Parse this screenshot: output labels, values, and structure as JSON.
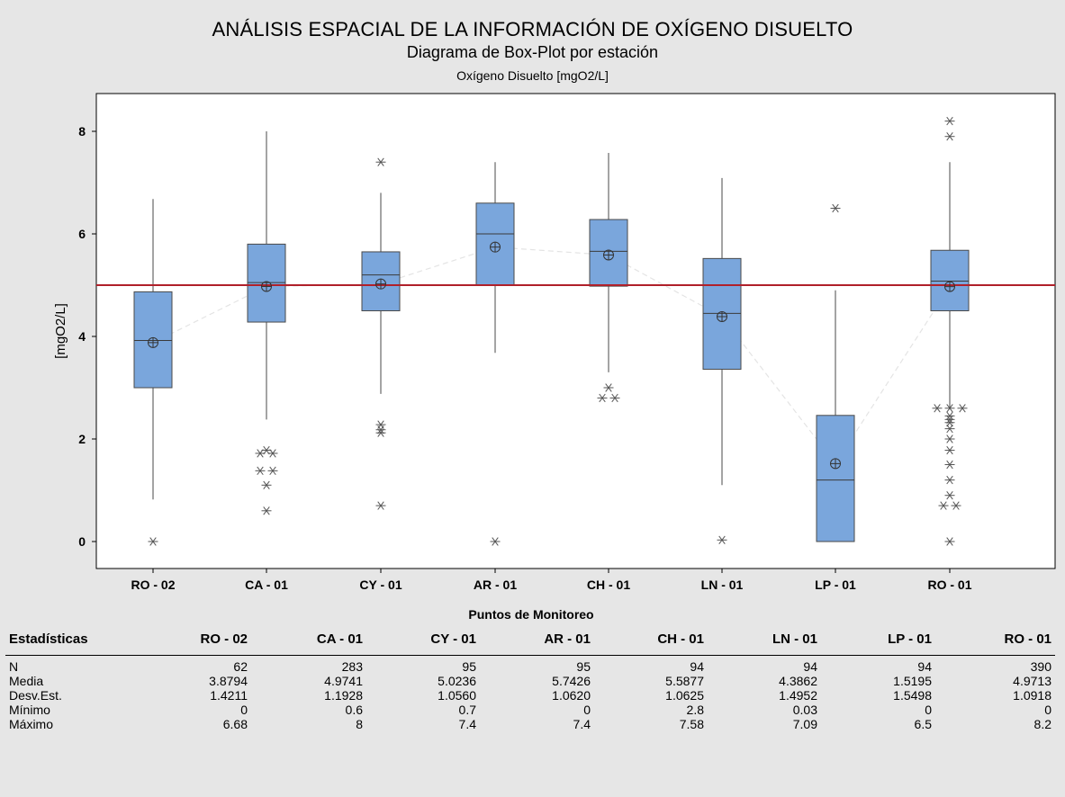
{
  "title": "ANÁLISIS ESPACIAL DE LA INFORMACIÓN DE OXÍGENO DISUELTO",
  "subtitle": "Diagrama de Box-Plot por estación",
  "chart_data": {
    "type": "boxplot",
    "title": "Oxígeno Disuelto [mgO2/L]",
    "xlabel": "Puntos de Monitoreo",
    "ylabel": "[mgO2/L]",
    "ylim": [
      -0.45,
      8.65
    ],
    "yticks": [
      0,
      2,
      4,
      6,
      8
    ],
    "reference_line": 5,
    "categories": [
      "RO - 02",
      "CA - 01",
      "CY - 01",
      "AR - 01",
      "CH - 01",
      "LN - 01",
      "LP - 01",
      "RO - 01"
    ],
    "boxes": [
      {
        "q1": 3.0,
        "median": 3.92,
        "q3": 4.87,
        "whisker_low": 0.82,
        "whisker_high": 6.68,
        "mean": 3.8794,
        "outliers": [
          0
        ]
      },
      {
        "q1": 4.28,
        "median": 5.05,
        "q3": 5.8,
        "whisker_low": 2.38,
        "whisker_high": 8.0,
        "mean": 4.9741,
        "outliers": [
          1.72,
          1.72,
          1.78,
          1.38,
          1.38,
          1.1,
          0.6
        ]
      },
      {
        "q1": 4.5,
        "median": 5.2,
        "q3": 5.65,
        "whisker_low": 2.88,
        "whisker_high": 6.8,
        "mean": 5.0236,
        "outliers": [
          7.4,
          2.28,
          2.18,
          2.12,
          0.7
        ]
      },
      {
        "q1": 5.0,
        "median": 6.0,
        "q3": 6.6,
        "whisker_low": 3.68,
        "whisker_high": 7.4,
        "mean": 5.7426,
        "outliers": [
          0
        ]
      },
      {
        "q1": 4.98,
        "median": 5.66,
        "q3": 6.28,
        "whisker_low": 3.3,
        "whisker_high": 7.58,
        "mean": 5.5877,
        "outliers": [
          3.0,
          2.8,
          2.8
        ]
      },
      {
        "q1": 3.36,
        "median": 4.45,
        "q3": 5.52,
        "whisker_low": 1.1,
        "whisker_high": 7.09,
        "mean": 4.3862,
        "outliers": [
          0.03
        ]
      },
      {
        "q1": 0.0,
        "median": 1.2,
        "q3": 2.46,
        "whisker_low": 0.0,
        "whisker_high": 4.9,
        "mean": 1.5195,
        "outliers": [
          6.5
        ]
      },
      {
        "q1": 4.5,
        "median": 5.08,
        "q3": 5.68,
        "whisker_low": 2.6,
        "whisker_high": 7.4,
        "mean": 4.9713,
        "outliers": [
          8.2,
          7.9,
          2.6,
          2.6,
          2.6,
          2.45,
          2.38,
          2.32,
          2.2,
          2.0,
          1.78,
          1.5,
          1.2,
          0.9,
          0.7,
          0.7,
          0.0
        ]
      }
    ],
    "colors": {
      "box_fill": "#7aa6dc",
      "box_stroke": "#4a4a4a",
      "reference_line": "#b0202a",
      "mean_line": "#ffffff"
    }
  },
  "stats_table": {
    "header_label": "Estadísticas",
    "columns": [
      "RO - 02",
      "CA - 01",
      "CY - 01",
      "AR - 01",
      "CH - 01",
      "LN - 01",
      "LP - 01",
      "RO - 01"
    ],
    "rows": [
      {
        "label": "N",
        "values": [
          "62",
          "283",
          "95",
          "95",
          "94",
          "94",
          "94",
          "390"
        ]
      },
      {
        "label": "Media",
        "values": [
          "3.8794",
          "4.9741",
          "5.0236",
          "5.7426",
          "5.5877",
          "4.3862",
          "1.5195",
          "4.9713"
        ]
      },
      {
        "label": "Desv.Est.",
        "values": [
          "1.4211",
          "1.1928",
          "1.0560",
          "1.0620",
          "1.0625",
          "1.4952",
          "1.5498",
          "1.0918"
        ]
      },
      {
        "label": "Mínimo",
        "values": [
          "0",
          "0.6",
          "0.7",
          "0",
          "2.8",
          "0.03",
          "0",
          "0"
        ]
      },
      {
        "label": "Máximo",
        "values": [
          "6.68",
          "8",
          "7.4",
          "7.4",
          "7.58",
          "7.09",
          "6.5",
          "8.2"
        ]
      }
    ]
  }
}
